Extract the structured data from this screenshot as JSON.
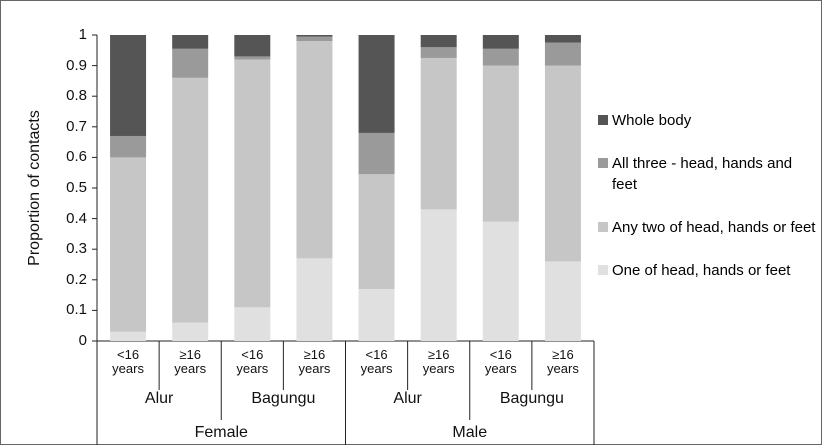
{
  "chart_data": {
    "type": "stacked_bar",
    "y_label": "Proportion of contacts",
    "groups": [
      {
        "name": "Female",
        "subgroups": [
          {
            "name": "Alur",
            "categories": [
              "<16 years",
              "≥16 years"
            ]
          },
          {
            "name": "Bagungu",
            "categories": [
              "<16 years",
              "≥16 years"
            ]
          }
        ]
      },
      {
        "name": "Male",
        "subgroups": [
          {
            "name": "Alur",
            "categories": [
              "<16 years",
              "≥16 years"
            ]
          },
          {
            "name": "Bagungu",
            "categories": [
              "<16 years",
              "≥16 years"
            ]
          }
        ]
      }
    ],
    "series": [
      {
        "name": "One of head, hands or feet",
        "color": "#e0e0e0",
        "values": [
          0.03,
          0.06,
          0.11,
          0.27,
          0.17,
          0.43,
          0.39,
          0.26
        ]
      },
      {
        "name": "Any two of head, hands or feet",
        "color": "#c6c6c6",
        "values": [
          0.57,
          0.8,
          0.81,
          0.71,
          0.375,
          0.495,
          0.51,
          0.64
        ]
      },
      {
        "name": "All three - head, hands and feet",
        "color": "#9a9a9a",
        "values": [
          0.07,
          0.095,
          0.01,
          0.015,
          0.135,
          0.035,
          0.055,
          0.075
        ]
      },
      {
        "name": "Whole body",
        "color": "#555555",
        "values": [
          0.33,
          0.045,
          0.07,
          0.005,
          0.32,
          0.04,
          0.045,
          0.025
        ]
      }
    ],
    "ylim": [
      0,
      1
    ],
    "yticks": [
      0,
      0.1,
      0.2,
      0.3,
      0.4,
      0.5,
      0.6,
      0.7,
      0.8,
      0.9,
      1
    ],
    "legend": "right"
  }
}
